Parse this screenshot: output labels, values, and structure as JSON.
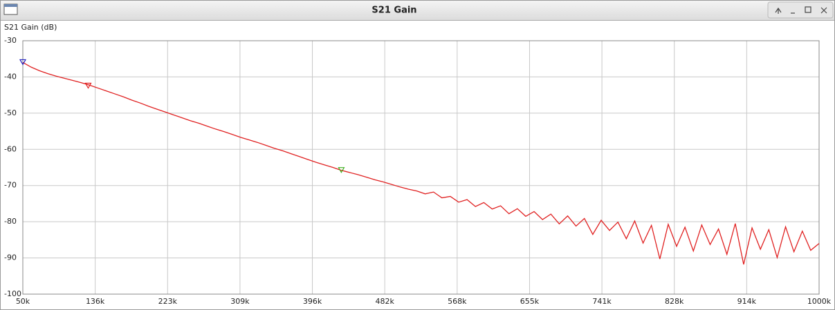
{
  "window": {
    "title": "S21 Gain"
  },
  "chart_data": {
    "type": "line",
    "ylabel": "S21 Gain (dB)",
    "x": [
      50000,
      60000,
      70000,
      80000,
      90000,
      100000,
      110000,
      120000,
      130000,
      140000,
      150000,
      160000,
      170000,
      180000,
      190000,
      200000,
      210000,
      220000,
      230000,
      240000,
      250000,
      260000,
      270000,
      280000,
      290000,
      300000,
      310000,
      320000,
      330000,
      340000,
      350000,
      360000,
      370000,
      380000,
      390000,
      400000,
      410000,
      420000,
      430000,
      440000,
      450000,
      460000,
      470000,
      480000,
      490000,
      500000,
      510000,
      520000,
      530000,
      540000,
      550000,
      560000,
      570000,
      580000,
      590000,
      600000,
      610000,
      620000,
      630000,
      640000,
      650000,
      660000,
      670000,
      680000,
      690000,
      700000,
      710000,
      720000,
      730000,
      740000,
      750000,
      760000,
      770000,
      780000,
      790000,
      800000,
      810000,
      820000,
      830000,
      840000,
      850000,
      860000,
      870000,
      880000,
      890000,
      900000,
      910000,
      920000,
      930000,
      940000,
      950000,
      960000,
      970000,
      980000,
      990000,
      1000000
    ],
    "series": [
      {
        "color": "#e02020",
        "values": [
          -36,
          -37.3,
          -38.3,
          -39.1,
          -39.8,
          -40.4,
          -41,
          -41.6,
          -42.3,
          -43.1,
          -43.9,
          -44.7,
          -45.5,
          -46.4,
          -47.2,
          -48.1,
          -48.9,
          -49.7,
          -50.5,
          -51.3,
          -52.1,
          -52.8,
          -53.6,
          -54.4,
          -55.1,
          -55.9,
          -56.7,
          -57.4,
          -58.1,
          -58.9,
          -59.7,
          -60.4,
          -61.2,
          -62.0,
          -62.8,
          -63.6,
          -64.3,
          -65.0,
          -65.8,
          -66.4,
          -67.0,
          -67.7,
          -68.4,
          -69.0,
          -69.7,
          -70.4,
          -71.0,
          -71.5,
          -72.3,
          -71.8,
          -73.4,
          -73.0,
          -74.6,
          -73.9,
          -75.8,
          -74.7,
          -76.5,
          -75.6,
          -77.8,
          -76.4,
          -78.5,
          -77.2,
          -79.4,
          -77.9,
          -80.6,
          -78.4,
          -81.2,
          -79.1,
          -83.5,
          -79.6,
          -82.4,
          -80.1,
          -84.7,
          -79.8,
          -85.9,
          -81.0,
          -90.3,
          -80.7,
          -86.8,
          -81.5,
          -88.1,
          -80.9,
          -86.3,
          -82.0,
          -89.0,
          -80.5,
          -91.8,
          -81.7,
          -87.6,
          -82.2,
          -89.9,
          -81.4,
          -88.3,
          -82.6,
          -87.9,
          -86.0
        ]
      }
    ],
    "markers": [
      {
        "x": 50000,
        "value": -36,
        "color": "#2020c0"
      },
      {
        "x": 128000,
        "value": -42.5,
        "color": "#e02020"
      },
      {
        "x": 430000,
        "value": -65.8,
        "color": "#40b020"
      }
    ],
    "xlim": [
      50000,
      1000000
    ],
    "xticks": [
      {
        "value": 50000,
        "label": "50k"
      },
      {
        "value": 136364,
        "label": "136k"
      },
      {
        "value": 222727,
        "label": "223k"
      },
      {
        "value": 309091,
        "label": "309k"
      },
      {
        "value": 395455,
        "label": "396k"
      },
      {
        "value": 481818,
        "label": "482k"
      },
      {
        "value": 568182,
        "label": "568k"
      },
      {
        "value": 654545,
        "label": "655k"
      },
      {
        "value": 740909,
        "label": "741k"
      },
      {
        "value": 827273,
        "label": "828k"
      },
      {
        "value": 913636,
        "label": "914k"
      },
      {
        "value": 1000000,
        "label": "1000k"
      }
    ],
    "ylim": [
      -100,
      -30
    ],
    "yticks": [
      -30,
      -40,
      -50,
      -60,
      -70,
      -80,
      -90,
      -100
    ],
    "grid": true
  }
}
